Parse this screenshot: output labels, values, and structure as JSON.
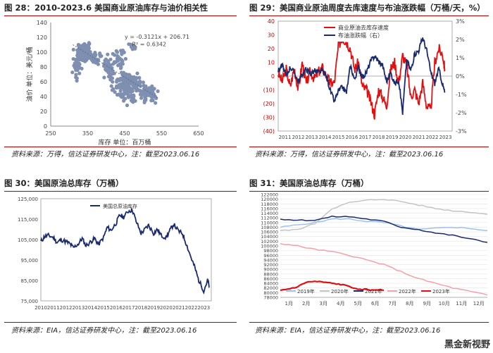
{
  "watermark": "黑金新视野",
  "chart_data": [
    {
      "id": "fig28",
      "type": "scatter",
      "title": "图 28：2010-2023.6 美国商业原油库存与油价相关性",
      "xlabel": "库存 单位：百万桶",
      "ylabel": "油价 单位：美元/桶",
      "xlim": [
        250,
        650
      ],
      "ylim": [
        0,
        140
      ],
      "xticks": [
        250,
        350,
        450,
        550,
        650
      ],
      "yticks": [
        0,
        20,
        40,
        60,
        80,
        100,
        120,
        140
      ],
      "equation": "y = -0.3121x + 206.71",
      "r2": "R² = 0.6342",
      "trend": {
        "slope": -0.3121,
        "intercept": 206.71
      },
      "color": "#7f8fb0",
      "clusters": [
        {
          "cx": 340,
          "cy": 100,
          "sx": 14,
          "sy": 8,
          "n": 110
        },
        {
          "cx": 322,
          "cy": 80,
          "sx": 7,
          "sy": 9,
          "n": 35
        },
        {
          "cx": 375,
          "cy": 92,
          "sx": 12,
          "sy": 6,
          "n": 30
        },
        {
          "cx": 410,
          "cy": 78,
          "sx": 12,
          "sy": 12,
          "n": 45
        },
        {
          "cx": 460,
          "cy": 58,
          "sx": 25,
          "sy": 10,
          "n": 130
        },
        {
          "cx": 470,
          "cy": 42,
          "sx": 35,
          "sy": 8,
          "n": 60
        },
        {
          "cx": 515,
          "cy": 46,
          "sx": 15,
          "sy": 6,
          "n": 35
        },
        {
          "cx": 440,
          "cy": 92,
          "sx": 10,
          "sy": 10,
          "n": 25
        },
        {
          "cx": 470,
          "cy": 108,
          "sx": 8,
          "sy": 3,
          "n": 12
        },
        {
          "cx": 530,
          "cy": 38,
          "sx": 8,
          "sy": 4,
          "n": 10
        }
      ],
      "source": "资料来源：万得，信达证券研发中心，注：截至2023.06.16"
    },
    {
      "id": "fig29",
      "type": "line",
      "title": "图 29：美国商业原油周度去库速度与布油涨跌幅（万桶/天，%）",
      "x_categories": [
        "2011",
        "2012",
        "2013",
        "2014",
        "2015",
        "2016",
        "2017",
        "2018",
        "2019",
        "2020",
        "2021",
        "2022",
        "2023"
      ],
      "y_left": {
        "min": -40,
        "max": 40,
        "ticks": [
          "40",
          "30",
          "20",
          "10",
          "0",
          "(10)",
          "(20)",
          "(30)",
          "(40)"
        ],
        "tick_values": [
          40,
          30,
          20,
          10,
          0,
          -10,
          -20,
          -30,
          -40
        ]
      },
      "y_right": {
        "min": -3,
        "max": 3,
        "ticks": [
          "3%",
          "2%",
          "1%",
          "0%",
          "-1%",
          "-2%",
          "-3%"
        ],
        "tick_values": [
          3,
          2,
          1,
          0,
          -1,
          -2,
          -3
        ]
      },
      "series": [
        {
          "name": "商业原油去库存速度",
          "color": "#e01010",
          "axis": "left",
          "x": [
            2011.0,
            2011.3,
            2011.6,
            2011.9,
            2012.2,
            2012.5,
            2012.8,
            2013.1,
            2013.4,
            2013.7,
            2014.0,
            2014.3,
            2014.6,
            2014.9,
            2015.2,
            2015.5,
            2015.8,
            2016.1,
            2016.4,
            2016.7,
            2017.0,
            2017.3,
            2017.6,
            2017.9,
            2018.2,
            2018.5,
            2018.8,
            2019.1,
            2019.4,
            2019.7,
            2020.0,
            2020.3,
            2020.6,
            2020.9,
            2021.2,
            2021.5,
            2021.8,
            2022.1,
            2022.4,
            2022.7,
            2023.0,
            2023.3,
            2023.45
          ],
          "y": [
            2,
            -4,
            5,
            -8,
            6,
            -10,
            10,
            -6,
            4,
            -2,
            3,
            6,
            0,
            -5,
            -5,
            22,
            28,
            25,
            20,
            5,
            10,
            -8,
            -10,
            -18,
            -28,
            -10,
            -15,
            -22,
            5,
            10,
            -5,
            15,
            8,
            -15,
            -10,
            -20,
            -5,
            -22,
            -25,
            10,
            20,
            15,
            5
          ]
        },
        {
          "name": "布油涨跌幅（右）",
          "color": "#1a2a6c",
          "axis": "right",
          "x": [
            2011.0,
            2011.3,
            2011.6,
            2011.9,
            2012.2,
            2012.5,
            2012.8,
            2013.1,
            2013.4,
            2013.7,
            2014.0,
            2014.3,
            2014.6,
            2014.9,
            2015.2,
            2015.5,
            2015.8,
            2016.1,
            2016.4,
            2016.7,
            2017.0,
            2017.3,
            2017.6,
            2017.9,
            2018.2,
            2018.5,
            2018.8,
            2019.1,
            2019.4,
            2019.7,
            2020.0,
            2020.3,
            2020.6,
            2020.9,
            2021.2,
            2021.5,
            2021.8,
            2022.1,
            2022.4,
            2022.7,
            2023.0,
            2023.3,
            2023.45
          ],
          "y": [
            0.3,
            0.6,
            0.0,
            0.5,
            0.2,
            -0.3,
            0.1,
            0.4,
            0.1,
            0.3,
            0.2,
            0.3,
            0.0,
            -0.8,
            -1.4,
            -0.8,
            -0.6,
            -0.9,
            0.6,
            -0.2,
            0.5,
            -0.1,
            0.2,
            0.8,
            1.1,
            0.8,
            0.6,
            -0.3,
            0.2,
            -0.4,
            -0.2,
            -2.0,
            0.9,
            0.3,
            1.2,
            1.4,
            2.1,
            1.4,
            0.2,
            -0.4,
            0.4,
            -0.5,
            -0.9
          ]
        }
      ],
      "source": "资料来源：万得，信达证券研发中心，注：截至2023.06.16"
    },
    {
      "id": "fig30",
      "type": "line",
      "title": "图 30：美国原油总库存（万桶）",
      "x_categories": [
        "2010",
        "2011",
        "2012",
        "2013",
        "2014",
        "2015",
        "2016",
        "2017",
        "2018",
        "2019",
        "2020",
        "2021",
        "2022",
        "2023"
      ],
      "ylim": [
        75000,
        125000
      ],
      "yticks": [
        "125,000",
        "115,000",
        "105,000",
        "95,000",
        "85,000",
        "75,000"
      ],
      "ytick_values": [
        125000,
        115000,
        105000,
        95000,
        85000,
        75000
      ],
      "series": [
        {
          "name": "美国总原油库存",
          "color": "#1a2a6c",
          "x": [
            2010.0,
            2010.3,
            2010.6,
            2011.0,
            2011.3,
            2011.6,
            2012.0,
            2012.3,
            2012.6,
            2013.0,
            2013.3,
            2013.6,
            2014.0,
            2014.3,
            2014.6,
            2015.0,
            2015.3,
            2015.6,
            2016.0,
            2016.3,
            2016.6,
            2017.0,
            2017.3,
            2017.6,
            2018.0,
            2018.3,
            2018.6,
            2019.0,
            2019.3,
            2019.6,
            2020.0,
            2020.3,
            2020.6,
            2021.0,
            2021.3,
            2021.6,
            2022.0,
            2022.3,
            2022.6,
            2023.0,
            2023.3,
            2023.45
          ],
          "y": [
            104000,
            106500,
            107000,
            106000,
            103500,
            105000,
            104000,
            103000,
            101000,
            103000,
            105500,
            102000,
            104000,
            105500,
            102500,
            106000,
            111000,
            109500,
            113000,
            117000,
            116000,
            119000,
            119500,
            114000,
            108000,
            110000,
            112000,
            108000,
            110000,
            107000,
            106000,
            109500,
            112500,
            109000,
            108000,
            103000,
            96000,
            91000,
            85000,
            80000,
            85000,
            82000
          ]
        }
      ],
      "source": "资料来源：EIA，信达证券研发中心，注：截至2023.06.16"
    },
    {
      "id": "fig31",
      "type": "line",
      "title": "图 31：美国原油总库存（万桶）",
      "x_categories": [
        "1月",
        "2月",
        "3月",
        "4月",
        "5月",
        "6月",
        "7月",
        "8月",
        "9月",
        "10月",
        "11月",
        "12月"
      ],
      "ylim": [
        78000,
        122000
      ],
      "yticks": [
        "122000",
        "120000",
        "118000",
        "116000",
        "114000",
        "112000",
        "110000",
        "108000",
        "106000",
        "104000",
        "102000",
        "100000",
        "98000",
        "96000",
        "94000",
        "92000",
        "90000",
        "88000",
        "86000",
        "84000",
        "82000",
        "80000",
        "78000"
      ],
      "ytick_values": [
        122000,
        120000,
        118000,
        116000,
        114000,
        112000,
        110000,
        108000,
        106000,
        104000,
        102000,
        100000,
        98000,
        96000,
        94000,
        92000,
        90000,
        88000,
        86000,
        84000,
        82000,
        80000,
        78000
      ],
      "series": [
        {
          "name": "2019年",
          "color": "#9ec3e8",
          "x": [
            0,
            1,
            2,
            3,
            4,
            5,
            6,
            7,
            8,
            9,
            10,
            11,
            12
          ],
          "y": [
            108000,
            109000,
            110000,
            111500,
            111500,
            110500,
            110000,
            108500,
            107000,
            107500,
            108000,
            107500,
            106500
          ]
        },
        {
          "name": "2020年",
          "color": "#c4c4c4",
          "x": [
            0,
            1,
            2,
            3,
            4,
            5,
            6,
            7,
            8,
            9,
            10,
            11,
            12
          ],
          "y": [
            106500,
            107000,
            109500,
            116000,
            118500,
            119500,
            120000,
            119000,
            117500,
            116000,
            115000,
            114500,
            113500
          ]
        },
        {
          "name": "2021年",
          "color": "#1a2a6c",
          "x": [
            0,
            1,
            2,
            3,
            4,
            5,
            6,
            7,
            8,
            9,
            10,
            11,
            12
          ],
          "y": [
            111500,
            111000,
            111000,
            112500,
            112500,
            111500,
            110500,
            108000,
            107000,
            105500,
            104500,
            103000,
            101500
          ]
        },
        {
          "name": "2022年",
          "color": "#f3a0a8",
          "x": [
            0,
            1,
            2,
            3,
            4,
            5,
            6,
            7,
            8,
            9,
            10,
            11,
            12
          ],
          "y": [
            101000,
            100000,
            98500,
            97500,
            96000,
            94000,
            92000,
            89000,
            86000,
            84000,
            82000,
            80500,
            79000
          ]
        },
        {
          "name": "2023年",
          "color": "#e01010",
          "x": [
            0,
            0.4,
            1,
            1.5,
            2,
            2.5,
            3,
            3.5,
            4,
            4.5,
            5,
            5.3,
            5.6,
            6
          ],
          "y": [
            81000,
            81500,
            82500,
            84500,
            84800,
            84500,
            84000,
            83500,
            82800,
            81200,
            81500,
            81000,
            81300,
            81000
          ]
        }
      ],
      "source": "资料来源：EIA，信达证券研发中心，注：截至2023.06.16"
    }
  ]
}
